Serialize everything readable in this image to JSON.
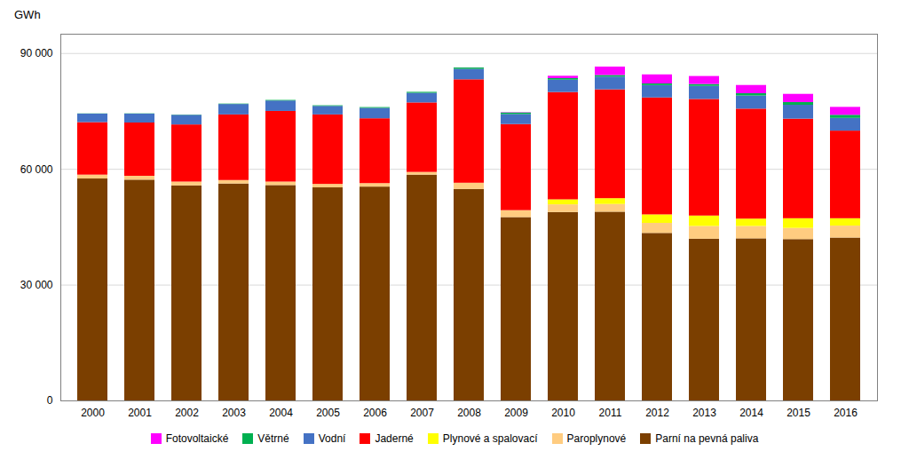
{
  "chart_data": {
    "type": "bar",
    "stacked": true,
    "ylabel": "GWh",
    "categories": [
      "2000",
      "2001",
      "2002",
      "2003",
      "2004",
      "2005",
      "2006",
      "2007",
      "2008",
      "2009",
      "2010",
      "2011",
      "2012",
      "2013",
      "2014",
      "2015",
      "2016"
    ],
    "series": [
      {
        "name": "Parní na pevná paliva",
        "color": "#7B3F00",
        "values": [
          57500,
          57200,
          55700,
          56200,
          55800,
          55200,
          55400,
          58500,
          54800,
          47500,
          48800,
          48900,
          43400,
          41900,
          42000,
          41800,
          42200
        ]
      },
      {
        "name": "Paroplynové",
        "color": "#FFCC80",
        "values": [
          1000,
          1000,
          1000,
          900,
          900,
          900,
          900,
          700,
          1600,
          1800,
          2000,
          2000,
          2600,
          3300,
          3200,
          2900,
          3100
        ]
      },
      {
        "name": "Plynové a spalovací",
        "color": "#FFFF00",
        "values": [
          0,
          0,
          0,
          0,
          0,
          0,
          0,
          0,
          0,
          0,
          1300,
          1500,
          2200,
          2700,
          1900,
          2500,
          1900
        ]
      },
      {
        "name": "Jaderné",
        "color": "#FF0000",
        "values": [
          13600,
          13800,
          14800,
          17000,
          18300,
          18000,
          16800,
          18000,
          26800,
          22300,
          27800,
          28200,
          30300,
          30200,
          28500,
          25800,
          22700
        ]
      },
      {
        "name": "Vodní",
        "color": "#4472C4",
        "values": [
          2200,
          2300,
          2500,
          2700,
          2700,
          2200,
          2700,
          2500,
          2700,
          2600,
          3200,
          3300,
          3200,
          3400,
          3400,
          3600,
          3300
        ]
      },
      {
        "name": "Větrné",
        "color": "#00B050",
        "values": [
          50,
          60,
          60,
          100,
          150,
          160,
          200,
          250,
          350,
          400,
          400,
          410,
          415,
          480,
          600,
          700,
          800
        ]
      },
      {
        "name": "Fotovoltaické",
        "color": "#FF00FF",
        "values": [
          0,
          0,
          0,
          0,
          0,
          0,
          0,
          0,
          13,
          89,
          616,
          2182,
          2353,
          2070,
          2123,
          2123,
          2050
        ]
      }
    ],
    "ylim": [
      0,
      95000
    ],
    "yticks": [
      0,
      {
        "value": 30000,
        "label": "30 000"
      },
      {
        "value": 60000,
        "label": "60 000"
      },
      {
        "value": 90000,
        "label": "90 000"
      }
    ],
    "grid": true,
    "legend": "bottom"
  }
}
